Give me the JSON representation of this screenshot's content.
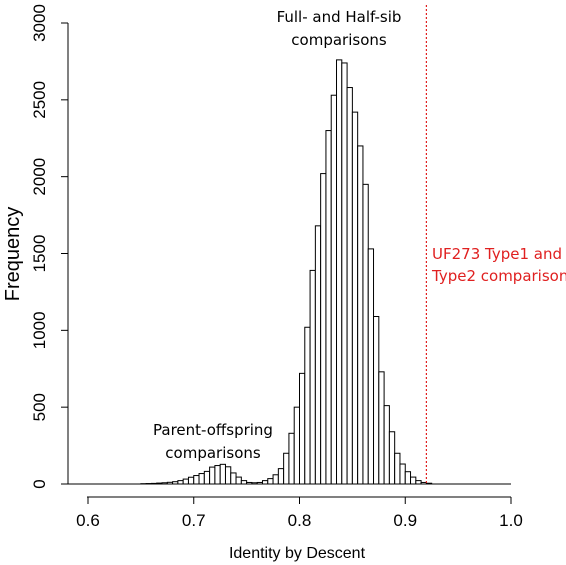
{
  "chart_data": {
    "type": "bar",
    "title": "",
    "xlabel": "Identity by Descent",
    "ylabel": "Frequency",
    "xlim": [
      0.58,
      1.0
    ],
    "ylim": [
      0,
      3000
    ],
    "x_ticks": [
      "0.6",
      "0.7",
      "0.8",
      "0.9",
      "1.0"
    ],
    "y_ticks": [
      "0",
      "500",
      "1000",
      "1500",
      "2000",
      "2500",
      "3000"
    ],
    "bin_width": 0.005,
    "bins": [
      {
        "x": 0.65,
        "value": 2
      },
      {
        "x": 0.655,
        "value": 3
      },
      {
        "x": 0.66,
        "value": 4
      },
      {
        "x": 0.665,
        "value": 6
      },
      {
        "x": 0.67,
        "value": 8
      },
      {
        "x": 0.675,
        "value": 11
      },
      {
        "x": 0.68,
        "value": 15
      },
      {
        "x": 0.685,
        "value": 22
      },
      {
        "x": 0.69,
        "value": 32
      },
      {
        "x": 0.695,
        "value": 44
      },
      {
        "x": 0.7,
        "value": 55
      },
      {
        "x": 0.705,
        "value": 68
      },
      {
        "x": 0.71,
        "value": 82
      },
      {
        "x": 0.715,
        "value": 110
      },
      {
        "x": 0.72,
        "value": 120
      },
      {
        "x": 0.725,
        "value": 128
      },
      {
        "x": 0.73,
        "value": 112
      },
      {
        "x": 0.735,
        "value": 72
      },
      {
        "x": 0.74,
        "value": 45
      },
      {
        "x": 0.745,
        "value": 22
      },
      {
        "x": 0.75,
        "value": 10
      },
      {
        "x": 0.755,
        "value": 8
      },
      {
        "x": 0.76,
        "value": 10
      },
      {
        "x": 0.765,
        "value": 22
      },
      {
        "x": 0.77,
        "value": 35
      },
      {
        "x": 0.775,
        "value": 60
      },
      {
        "x": 0.78,
        "value": 100
      },
      {
        "x": 0.785,
        "value": 200
      },
      {
        "x": 0.79,
        "value": 330
      },
      {
        "x": 0.795,
        "value": 500
      },
      {
        "x": 0.8,
        "value": 720
      },
      {
        "x": 0.805,
        "value": 1020
      },
      {
        "x": 0.81,
        "value": 1390
      },
      {
        "x": 0.815,
        "value": 1680
      },
      {
        "x": 0.82,
        "value": 2020
      },
      {
        "x": 0.825,
        "value": 2300
      },
      {
        "x": 0.83,
        "value": 2530
      },
      {
        "x": 0.835,
        "value": 2760
      },
      {
        "x": 0.84,
        "value": 2740
      },
      {
        "x": 0.845,
        "value": 2580
      },
      {
        "x": 0.85,
        "value": 2420
      },
      {
        "x": 0.855,
        "value": 2200
      },
      {
        "x": 0.86,
        "value": 1950
      },
      {
        "x": 0.865,
        "value": 1530
      },
      {
        "x": 0.87,
        "value": 1090
      },
      {
        "x": 0.875,
        "value": 730
      },
      {
        "x": 0.88,
        "value": 510
      },
      {
        "x": 0.885,
        "value": 340
      },
      {
        "x": 0.89,
        "value": 200
      },
      {
        "x": 0.895,
        "value": 130
      },
      {
        "x": 0.9,
        "value": 80
      },
      {
        "x": 0.905,
        "value": 45
      },
      {
        "x": 0.91,
        "value": 22
      },
      {
        "x": 0.915,
        "value": 10
      },
      {
        "x": 0.92,
        "value": 5
      }
    ],
    "reference_line": {
      "x": 0.92,
      "color": "#e02020"
    },
    "annotations": [
      {
        "lines": [
          "Full- and Half-sib",
          "comparisons"
        ],
        "color": "#000000"
      },
      {
        "lines": [
          "Parent-offspring",
          "comparisons"
        ],
        "color": "#000000"
      },
      {
        "lines": [
          "UF273 Type1 and",
          "Type2 comparison"
        ],
        "color": "#e02020"
      }
    ]
  }
}
